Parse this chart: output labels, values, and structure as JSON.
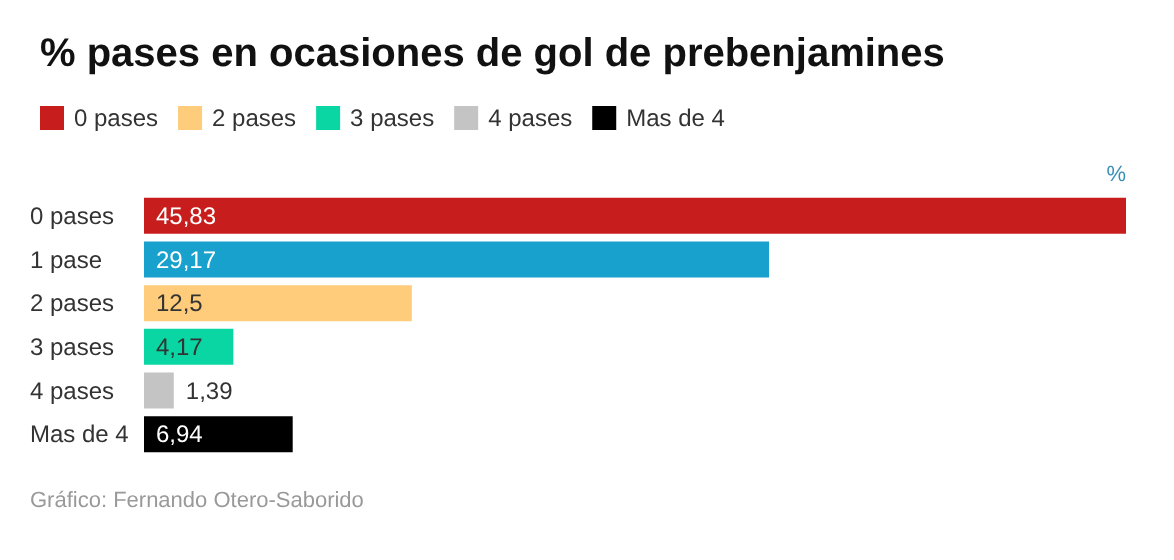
{
  "chart_data": {
    "type": "bar",
    "orientation": "horizontal",
    "stacked": true,
    "title": "% pases en ocasiones de gol de prebenjamines",
    "xlabel": "%",
    "annotations": [
      "Gráfico: Fernando Otero-Saborido"
    ],
    "categories": [
      "0 pases",
      "1 pase",
      "2 pases",
      "3 pases",
      "4 pases",
      "Mas de 4"
    ],
    "series": [
      {
        "name": "0 pases",
        "color": "#c71e1d",
        "values": [
          45.83,
          null,
          null,
          null,
          null,
          null
        ],
        "value_labels": [
          "45,83",
          null,
          null,
          null,
          null,
          null
        ]
      },
      {
        "color": "#18a1cd",
        "values": [
          null,
          29.17,
          null,
          null,
          null,
          null
        ],
        "value_labels": [
          null,
          "29,17",
          null,
          null,
          null,
          null
        ]
      },
      {
        "name": "2 pases",
        "color": "#fecc7a",
        "values": [
          null,
          null,
          12.5,
          null,
          null,
          null
        ],
        "value_labels": [
          null,
          null,
          "12,5",
          null,
          null,
          null
        ]
      },
      {
        "name": "3 pases",
        "color": "#09d6a3",
        "values": [
          null,
          null,
          null,
          4.17,
          null,
          null
        ],
        "value_labels": [
          null,
          null,
          null,
          "4,17",
          null,
          null
        ]
      },
      {
        "name": "4 pases",
        "color": "#c4c4c4",
        "values": [
          null,
          null,
          null,
          null,
          1.39,
          null
        ],
        "value_labels": [
          null,
          null,
          null,
          null,
          "1,39",
          null
        ]
      },
      {
        "name": "Mas de 4",
        "color": "#000000",
        "values": [
          null,
          null,
          null,
          null,
          null,
          6.94
        ],
        "value_labels": [
          null,
          null,
          null,
          null,
          null,
          "6,94"
        ]
      }
    ],
    "legend": "top left",
    "grid": false
  }
}
